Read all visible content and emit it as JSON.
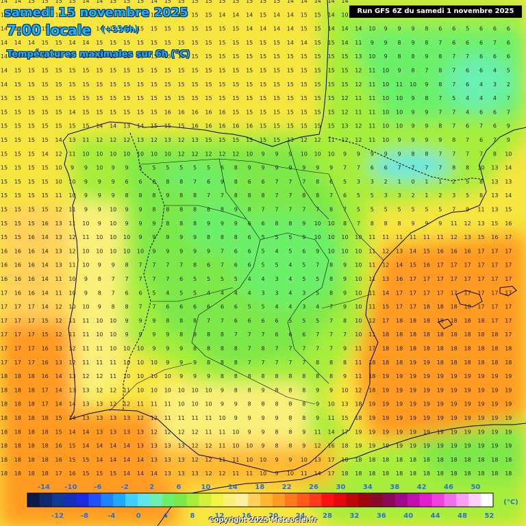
{
  "header": {
    "date_line": "samedi 15 novembre 2025",
    "time_line": "7:00 locale",
    "lead_time": "(+336h)",
    "field_title": "Températures maximales sur 6h (°C)",
    "run_info": "Run GFS 6Z du samedi 1 novembre 2025"
  },
  "legend": {
    "unit": "(°C)",
    "colors": [
      "#0a1a4a",
      "#0d2a6e",
      "#0f3a96",
      "#1430b8",
      "#1a2ae0",
      "#1f4fff",
      "#1e82ff",
      "#20a8ff",
      "#3fd0ff",
      "#5ee6ee",
      "#6bf0b0",
      "#6cf06a",
      "#7de84a",
      "#a6ee3a",
      "#d4f03a",
      "#f4f542",
      "#fbf07a",
      "#fff0a0",
      "#ffd15a",
      "#ffb830",
      "#ff9a22",
      "#ff7a1a",
      "#ff5a1a",
      "#ff3a1a",
      "#ff1010",
      "#e00a0a",
      "#c00808",
      "#a0060a",
      "#8a0a2a",
      "#8a0a5a",
      "#a00a8a",
      "#c010b0",
      "#e020d0",
      "#f040e0",
      "#f070ec",
      "#f8a0f4",
      "#fcd0fa",
      "#ffffff"
    ],
    "top_labels": [
      "-14",
      "-10",
      "-6",
      "-2",
      "2",
      "6",
      "10",
      "14",
      "18",
      "22",
      "26",
      "30",
      "34",
      "38",
      "42",
      "46",
      "50"
    ],
    "bottom_labels": [
      "-12",
      "-8",
      "-4",
      "0",
      "4",
      "8",
      "12",
      "16",
      "20",
      "24",
      "28",
      "32",
      "36",
      "40",
      "44",
      "48",
      "52"
    ]
  },
  "grid_values": [
    "14 14 15 15 15 15 14 14 15 15 15 14 15 15 15 15 15 15 15 15 15 14 14 14 14 14",
    "14 14 14 15 15 14 14 14 15 15 14 15 15 15 15 15 14 14 14 15 14 14 15 15 14 10",
    "14 14 14 15 15 14 14 14 15 15 15 15 15 15 15 15 15 15 14 14 14 14 15 15 14 14 14 10 9 9 9 8 6 6 5 6 6 6",
    "14 14 14 15 15 14 14 15 15 15 15 15 15 15 15 15 15 15 15 15 15 14 14 15 15 14 11 9 9 8 9 8 7 6 6 6 7 6",
    "14 14 14 15 15 14 14 15 15 15 15 15 15 15 15 15 15 15 15 15 15 15 15 15 15 15 13 10 9 8 8 9 8 7 7 6 6 6",
    "14 15 15 15 15 15 15 15 15 15 15 15 15 15 15 15 15 15 15 15 15 15 15 15 15 15 12 11 10 9 8 7 8 7 6 6 4 5",
    "14 15 15 15 15 15 15 15 15 15 15 15 15 15 15 15 15 15 15 15 15 15 15 15 15 15 12 11 10 11 10 9 8 7 6 4 3 2",
    "15 15 15 15 15 15 15 15 15 15 15 15 15 15 15 15 15 15 15 15 15 15 15 15 15 12 11 11 10 10 9 8 7 5 4 4 4 7",
    "15 15 15 15 15 14 15 15 15 15 15 15 16 16 16 16 16 15 15 15 15 15 15 15 15 12 11 11 10 10 9 9 7 7 4 6 6 7",
    "15 15 15 15 15 15 15 14 14 13 14 15 15 15 16 16 16 16 16 15 15 15 15 15 15 13 12 11 10 10 9 9 8 7 6 7 6 9",
    "15 15 15 15 14 13 11 12 12 12 13 12 13 12 13 15 15 15 15 15 15 13 12 12 11 12 12 11 10 9 9 9 9 8 7 6 7 9",
    "15 15 15 14 12 11 10 10 10 10 10 10 10 12 12 12 12 12 10 9 9 9 10 10 10 9 9 9 9 9 8 8 7 7 7 7 8 10",
    "15 15 15 15 10 9 9 10 9 9 5 5 5 5 5 5 6 8 9 9 9 9 9 9 9 7 7 6 6 7 7 7 7 8 8 10 13 14",
    "15 15 15 15 10 10 9 9 9 6 6 8 8 8 7 6 9 8 6 6 7 7 7 8 6 5 3 3 2 1 0 1 1 2 5 8 13 13",
    "15 15 15 15 11 10 9 9 9 8 8 8 9 8 8 7 7 8 8 8 7 7 8 8 7 6 5 5 3 3 2 1 2 3 5 8 13 14",
    "15 15 15 15 12 11 9 9 10 9 9 8 8 8 8 8 8 9 8 7 7 7 7 7 8 7 5 5 5 5 5 5 5 7 9 11 13 15",
    "15 15 15 16 13 11 10 9 10 9 9 9 8 8 8 9 9 9 6 6 8 8 9 10 10 8 7 8 8 8 9 9 9 11 12 13 15 16",
    "15 15 16 14 13 12 11 10 10 10 9 9 9 9 9 8 8 8 6 5 5 5 9 10 10 10 10 11 11 11 11 11 11 12 13 15 16 17",
    "16 16 16 14 13 12 10 10 10 10 10 9 9 9 9 9 7 6 6 5 4 5 6 9 10 10 10 11 12 13 14 15 16 16 16 17 17 17",
    "16 16 16 14 13 11 10 9 9 8 7 7 7 7 8 6 7 6 6 5 5 4 5 7 8 9 10 11 12 14 15 16 17 17 17 17 17 17",
    "16 16 16 14 11 10 9 8 7 7 7 7 7 6 5 5 5 5 4 4 3 4 5 5 8 9 10 11 13 16 17 17 17 17 17 17 17 17",
    "17 16 16 14 11 10 9 8 7 6 6 5 4 5 5 4 4 4 4 3 3 4 3 5 8 9 10 11 14 17 17 17 17 17 17 17 17 17",
    "17 17 17 14 12 10 10 9 8 8 7 7 6 6 6 6 6 6 5 5 4 4 3 4 7 9 10 11 15 17 17 18 18 18 18 17 17 17",
    "17 17 17 15 12 11 11 10 10 9 9 9 8 8 8 7 7 6 6 6 6 5 5 5 7 8 10 12 17 18 18 18 18 18 18 18 17 17",
    "17 17 17 15 12 11 11 10 10 9 9 9 9 8 8 8 8 7 7 7 6 6 6 7 7 7 10 11 18 18 18 18 18 18 18 18 18 17",
    "17 17 17 16 13 12 11 11 10 10 10 9 9 9 8 8 8 8 7 8 7 7 7 7 7 9 11 17 18 18 18 18 18 18 18 18 18 18",
    "17 17 17 16 13 12 11 11 11 10 10 10 9 9 9 8 8 8 7 7 7 7 7 8 8 8 11 18 18 18 19 19 18 18 18 18 18 18",
    "18 18 18 16 14 13 12 12 11 10 10 10 10 9 9 9 8 8 8 8 8 8 8 8 8 9 11 18 19 19 19 19 19 19 19 19 19 19",
    "18 18 18 17 14 13 13 12 12 11 10 10 10 10 10 10 9 8 8 9 8 8 8 9 9 10 12 18 19 19 19 19 19 19 19 19 19 19",
    "18 18 18 17 14 14 13 13 12 12 11 11 11 10 10 10 9 9 8 8 8 8 8 9 10 13 18 19 19 19 19 19 19 19 19 19 19 19",
    "18 18 18 18 15 14 13 13 13 13 12 12 11 11 11 11 10 9 9 9 9 8 8 9 11 15 18 19 19 19 19 19 19 19 19 19 19 19",
    "18 18 18 18 15 14 14 13 13 13 13 12 12 12 12 11 11 10 9 9 8 8 9 11 14 17 19 19 19 19 19 19 19 19 19 19 19 19",
    "18 18 18 18 16 15 14 14 14 14 13 13 13 13 12 12 11 10 10 9 8 8 9 12 16 18 19 19 19 19 19 19 19 19 19 19 19 19",
    "18 18 18 18 16 15 15 14 14 14 14 13 13 13 12 12 11 11 10 10 9 9 10 13 17 18 18 18 18 18 18 18 18 18 18 18 18 18",
    "18 18 18 18 17 16 15 15 15 14 14 14 13 13 13 12 12 11 11 10 9 10 11 14 17 18 18 18 18 18 18 18 18 18 18 18 18 18",
    "18 18 18 18 18 17 16 15 15 15 15 14 14 14 14 13 13 12 11 11 10 10 11 15 18 17 17 17 17 16 16 13 12 11 11 12 12 12",
    "18 18 18 18 18 18 17 16 16 16 15 15 15 15 14 14 13 13 12 11 11 11 12 16 17 17 17 16 16 14 12 10 9 9 9 9 11 11",
    "18 18 18 18 18 18 18 18 18 17 16 16 16 15 15 15 14 13 13 12 12 12 13 17 17 17 16 15 14 12 10 9 8 8 8 9 10 11",
    "18 18 18 18 18 18 18 18 18 19 18 17 17 16 16 15 15 14 14 13 13 13 14 17 17 16 15 14 12 11 10 9 8 8 8 9 10 11",
    "18 18 18 18 18 18 18 18 18 19 19 18 18 17 17 16 15 15 14 14 14 14 15 17 17 15 14 13 11 10 9 9 8 8 9 10 11 12",
    "18 18 18 18 18 18 18 18 18 19 19 18 18 17 17 16 16 15 15 15 15 15 15 16 15 13 12 11 10 10 9 9 9 9 10 11 12 12",
    "18 18 18 18 18 18 18 18 18 19 19 18 18 17 17 17 16 16 16 15 15 14 14 14 13 12 11 11 10 10 10 10 10 10 11 12 12 12"
  ],
  "copyright": "Copyright 2025 Meteociel.fr"
}
